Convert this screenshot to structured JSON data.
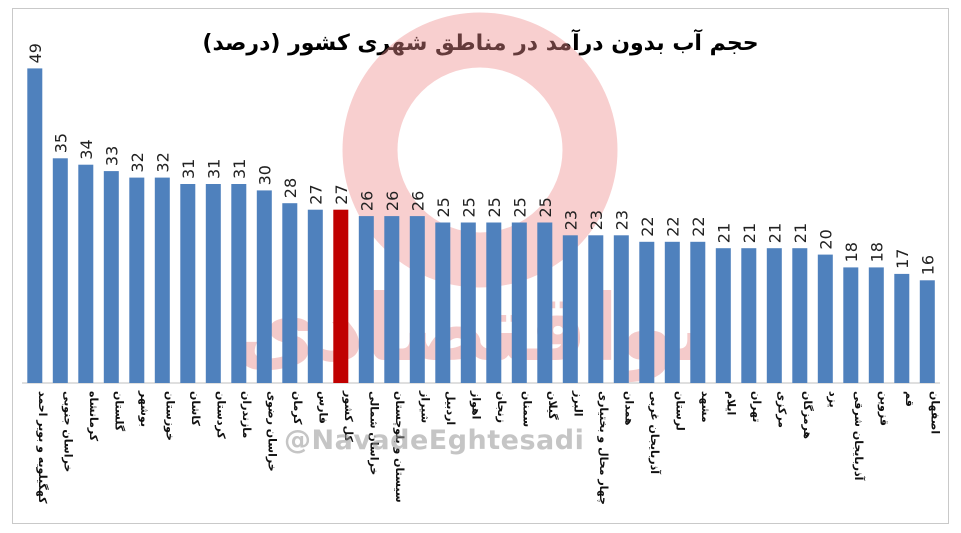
{
  "chart_data": {
    "type": "bar",
    "title": "حجم آب بدون درآمد در مناطق شهری کشور (درصد)",
    "categories": [
      "کهگیلویه و بویر احمد",
      "خراسان جنوبی",
      "کرمانشاه",
      "گلستان",
      "بوشهر",
      "خوزستان",
      "کاشان",
      "کردستان",
      "مازندران",
      "خراسان رضوی",
      "کرمان",
      "فارس",
      "کل کشور",
      "خراسان شمالی",
      "سیستان و بلوچستان",
      "شیراز",
      "اردبیل",
      "اهواز",
      "زنجان",
      "سمنان",
      "گیلان",
      "البرز",
      "چهار محال و بختیاری",
      "همدان",
      "آذربایجان غربی",
      "لرستان",
      "مشهد",
      "ایلام",
      "تهران",
      "مرکزی",
      "هرمزگان",
      "یزد",
      "آذربایجان شرقی",
      "قزوین",
      "قم",
      "اصفهان"
    ],
    "values": [
      49,
      35,
      34,
      33,
      32,
      32,
      31,
      31,
      31,
      30,
      28,
      27,
      27,
      26,
      26,
      26,
      25,
      25,
      25,
      25,
      25,
      23,
      23,
      23,
      22,
      22,
      22,
      21,
      21,
      21,
      21,
      20,
      18,
      18,
      17,
      16
    ],
    "highlight_index": 12,
    "colors": {
      "bar": "#4f81bd",
      "highlight": "#c00000",
      "watermark": "#e88b8b"
    },
    "ylim": [
      0,
      50
    ],
    "grid": false,
    "legend": "none",
    "xlabel": "",
    "ylabel": ""
  },
  "watermark": {
    "logo_text": "نواقتصادی",
    "handle": "@NavadeEghtesadi"
  }
}
